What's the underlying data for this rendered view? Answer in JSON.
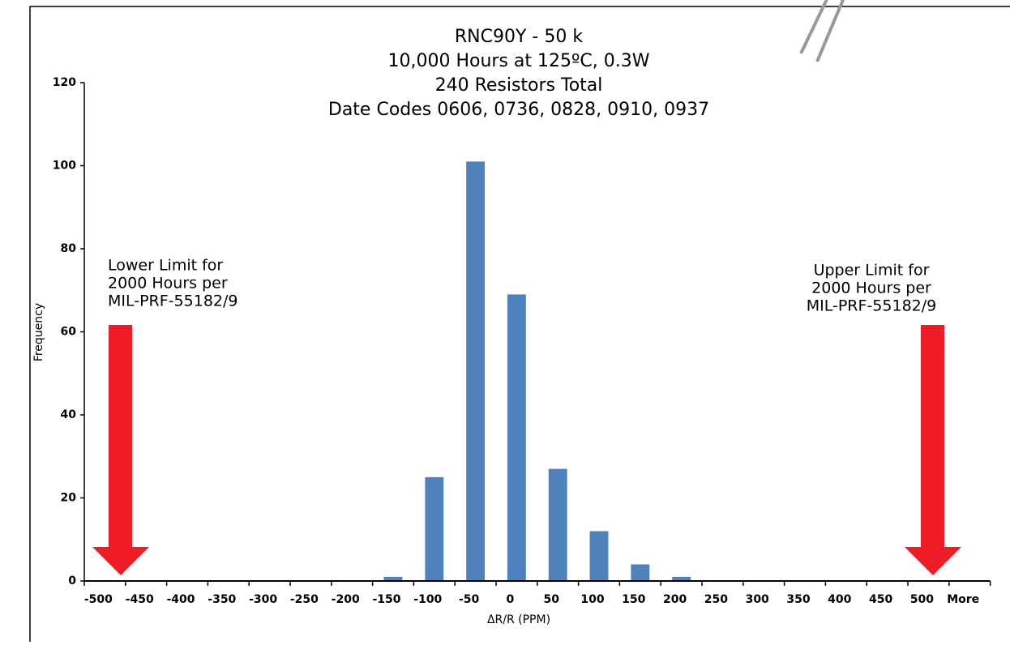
{
  "chart_data": {
    "type": "bar",
    "title": [
      "RNC90Y - 50 k",
      "10,000 Hours at 125ºC, 0.3W",
      "240 Resistors Total",
      "Date Codes 0606, 0736, 0828, 0910, 0937"
    ],
    "x_label": "ΔR/R (PPM)",
    "y_label": "Frequency",
    "categories": [
      "-500",
      "-450",
      "-400",
      "-350",
      "-300",
      "-250",
      "-200",
      "-150",
      "-100",
      "-50",
      "0",
      "50",
      "100",
      "150",
      "200",
      "250",
      "300",
      "350",
      "400",
      "450",
      "500",
      "More"
    ],
    "values": [
      0,
      0,
      0,
      0,
      0,
      0,
      0,
      1,
      25,
      101,
      69,
      27,
      12,
      4,
      1,
      0,
      0,
      0,
      0,
      0,
      0,
      0
    ],
    "color": "#4f81bd",
    "ylim": [
      0,
      120
    ],
    "yticks": [
      0,
      20,
      40,
      60,
      80,
      100,
      120
    ],
    "grid": false,
    "annotations": [
      {
        "lines": [
          "Lower Limit for",
          "2000 Hours per",
          "MIL-PRF-55182/9"
        ]
      },
      {
        "lines": [
          "Upper Limit for",
          "2000 Hours per",
          "MIL-PRF-55182/9"
        ]
      }
    ]
  }
}
